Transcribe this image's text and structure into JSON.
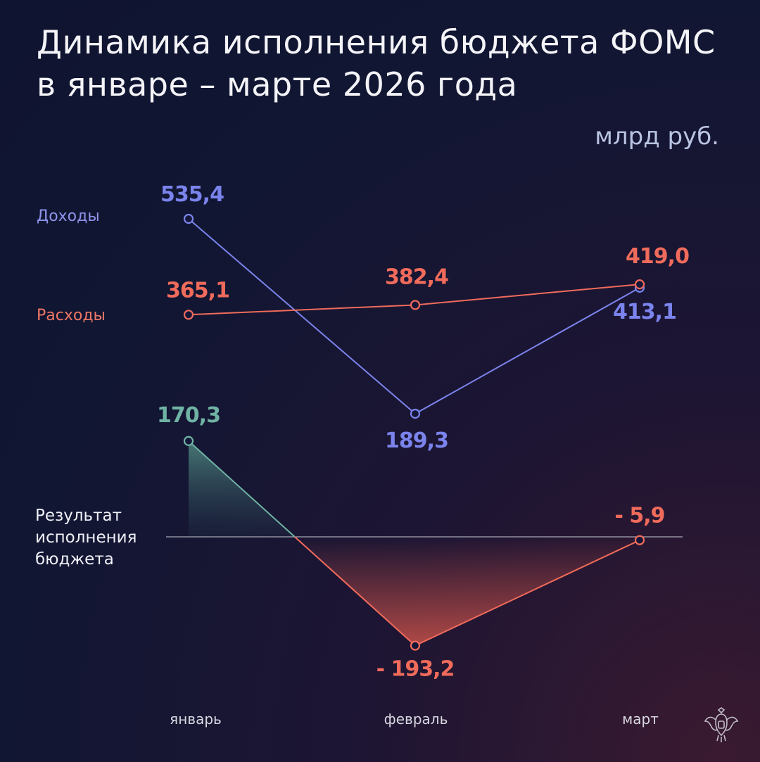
{
  "title_line1": "Динамика исполнения бюджета ФОМС",
  "title_line2": "в январе – марте 2026 года",
  "unit": "млрд руб.",
  "labels": {
    "income": "Доходы",
    "expense": "Расходы",
    "result_line1": "Результат",
    "result_line2": "исполнения",
    "result_line3": "бюджета"
  },
  "months": [
    "январь",
    "февраль",
    "март"
  ],
  "colors": {
    "income": "#7b83ec",
    "expense": "#f06b5b",
    "result_positive": "#6fb3a4",
    "result_negative": "#f06b5b",
    "zero_line": "#c9cbd6"
  },
  "icons": {
    "emblem": "double-headed-eagle-emblem"
  },
  "chart_data": {
    "type": "line",
    "categories": [
      "январь",
      "февраль",
      "март"
    ],
    "series": [
      {
        "name": "Доходы",
        "values": [
          535.4,
          189.3,
          413.1
        ],
        "labels": [
          "535,4",
          "189,3",
          "413,1"
        ]
      },
      {
        "name": "Расходы",
        "values": [
          365.1,
          382.4,
          419.0
        ],
        "labels": [
          "365,1",
          "382,4",
          "419,0"
        ]
      },
      {
        "name": "Результат исполнения бюджета",
        "values": [
          170.3,
          -193.2,
          -5.9
        ],
        "labels": [
          "170,3",
          "- 193,2",
          "- 5,9"
        ]
      }
    ]
  }
}
